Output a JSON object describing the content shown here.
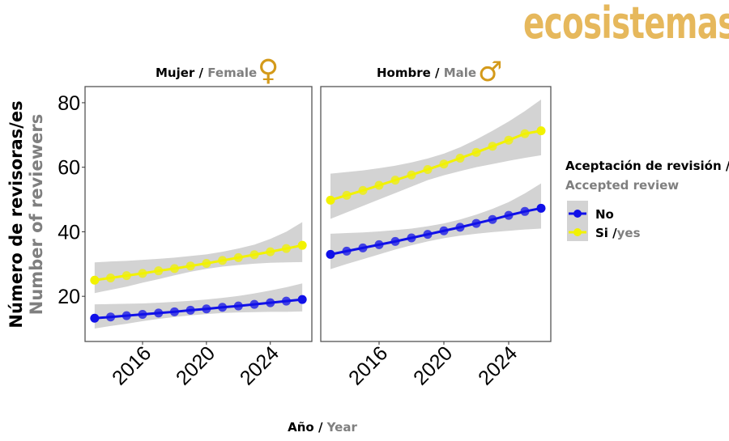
{
  "logo": "ecosistemas",
  "chart_data": {
    "type": "line",
    "x": [
      2013,
      2014,
      2015,
      2016,
      2017,
      2018,
      2019,
      2020,
      2021,
      2022,
      2023,
      2024,
      2025,
      2026
    ],
    "xlabel": {
      "es": "Año",
      "sep": " / ",
      "en": "Year"
    },
    "ylabel": {
      "es": "Número de revisoras/es",
      "en": "Number of reviewers"
    },
    "xticks": [
      2016,
      2020,
      2024
    ],
    "yticks": [
      20,
      40,
      60,
      80
    ],
    "ylim": [
      6,
      85
    ],
    "xlim": [
      2012.4,
      2026.6
    ],
    "grid": false,
    "legend": {
      "position": "right",
      "title_es": "Aceptación de revisión /",
      "title_en": "Accepted review",
      "entries": [
        {
          "label": "No",
          "label_en": "",
          "color": "#1010E8"
        },
        {
          "label": "Si /",
          "label_en": "yes",
          "color": "#F2F200"
        }
      ]
    },
    "band_color": "#D3D3D3",
    "panels": [
      {
        "title_es": "Mujer",
        "title_sep": " / ",
        "title_en": "Female",
        "symbol": "♀",
        "series": [
          {
            "name": "No",
            "color": "#1010E8",
            "values": [
              13.2,
              13.6,
              14.0,
              14.4,
              14.8,
              15.2,
              15.7,
              16.1,
              16.6,
              17.0,
              17.5,
              18.0,
              18.5,
              19.0
            ],
            "lower": [
              10,
              10.8,
              11.5,
              12.3,
              13,
              13.6,
              14.1,
              14.5,
              14.8,
              15,
              15.1,
              15.2,
              15.2,
              15.3
            ],
            "upper": [
              17.5,
              17.6,
              17.7,
              17.8,
              18,
              18.3,
              18.6,
              19,
              19.5,
              20.1,
              20.9,
              21.8,
              22.8,
              24
            ]
          },
          {
            "name": "Si / yes",
            "color": "#F2F200",
            "values": [
              25.0,
              25.7,
              26.4,
              27.1,
              27.9,
              28.6,
              29.4,
              30.2,
              31.1,
              32.0,
              32.9,
              33.8,
              34.8,
              35.8
            ],
            "lower": [
              21,
              22,
              23,
              24.2,
              25.3,
              26.5,
              27.6,
              28.5,
              29.2,
              29.7,
              30.1,
              30.4,
              30.5,
              30.6
            ],
            "upper": [
              30.5,
              30.8,
              31.0,
              31.3,
              31.6,
              32.0,
              32.5,
              33.0,
              33.8,
              34.8,
              36.0,
              37.8,
              40,
              43
            ]
          }
        ]
      },
      {
        "title_es": "Hombre",
        "title_sep": " / ",
        "title_en": "Male",
        "symbol": "♂",
        "series": [
          {
            "name": "No",
            "color": "#1010E8",
            "values": [
              33.0,
              34.0,
              35.0,
              36.0,
              37.0,
              38.1,
              39.2,
              40.3,
              41.4,
              42.6,
              43.8,
              45.1,
              46.3,
              47.3
            ],
            "lower": [
              28.4,
              30,
              31.5,
              33,
              34.5,
              35.8,
              37,
              38,
              38.8,
              39.4,
              39.9,
              40.3,
              40.7,
              41
            ],
            "upper": [
              39.4,
              39.6,
              39.8,
              40.1,
              40.5,
              41,
              41.7,
              42.6,
              43.8,
              45.3,
              47.1,
              49.2,
              51.9,
              55
            ]
          },
          {
            "name": "Si / yes",
            "color": "#F2F200",
            "values": [
              49.8,
              51.3,
              52.8,
              54.4,
              56.0,
              57.6,
              59.3,
              61.0,
              62.8,
              64.6,
              66.5,
              68.4,
              70.4,
              71.3
            ],
            "lower": [
              44,
              46,
              48,
              50,
              52,
              54,
              56,
              57.5,
              58.8,
              60,
              61,
              62,
              62.9,
              63.7
            ],
            "upper": [
              58,
              58.5,
              59,
              59.7,
              60.5,
              61.5,
              62.7,
              64.2,
              66.2,
              68.6,
              71.3,
              74.2,
              77.4,
              81
            ]
          }
        ]
      }
    ]
  }
}
